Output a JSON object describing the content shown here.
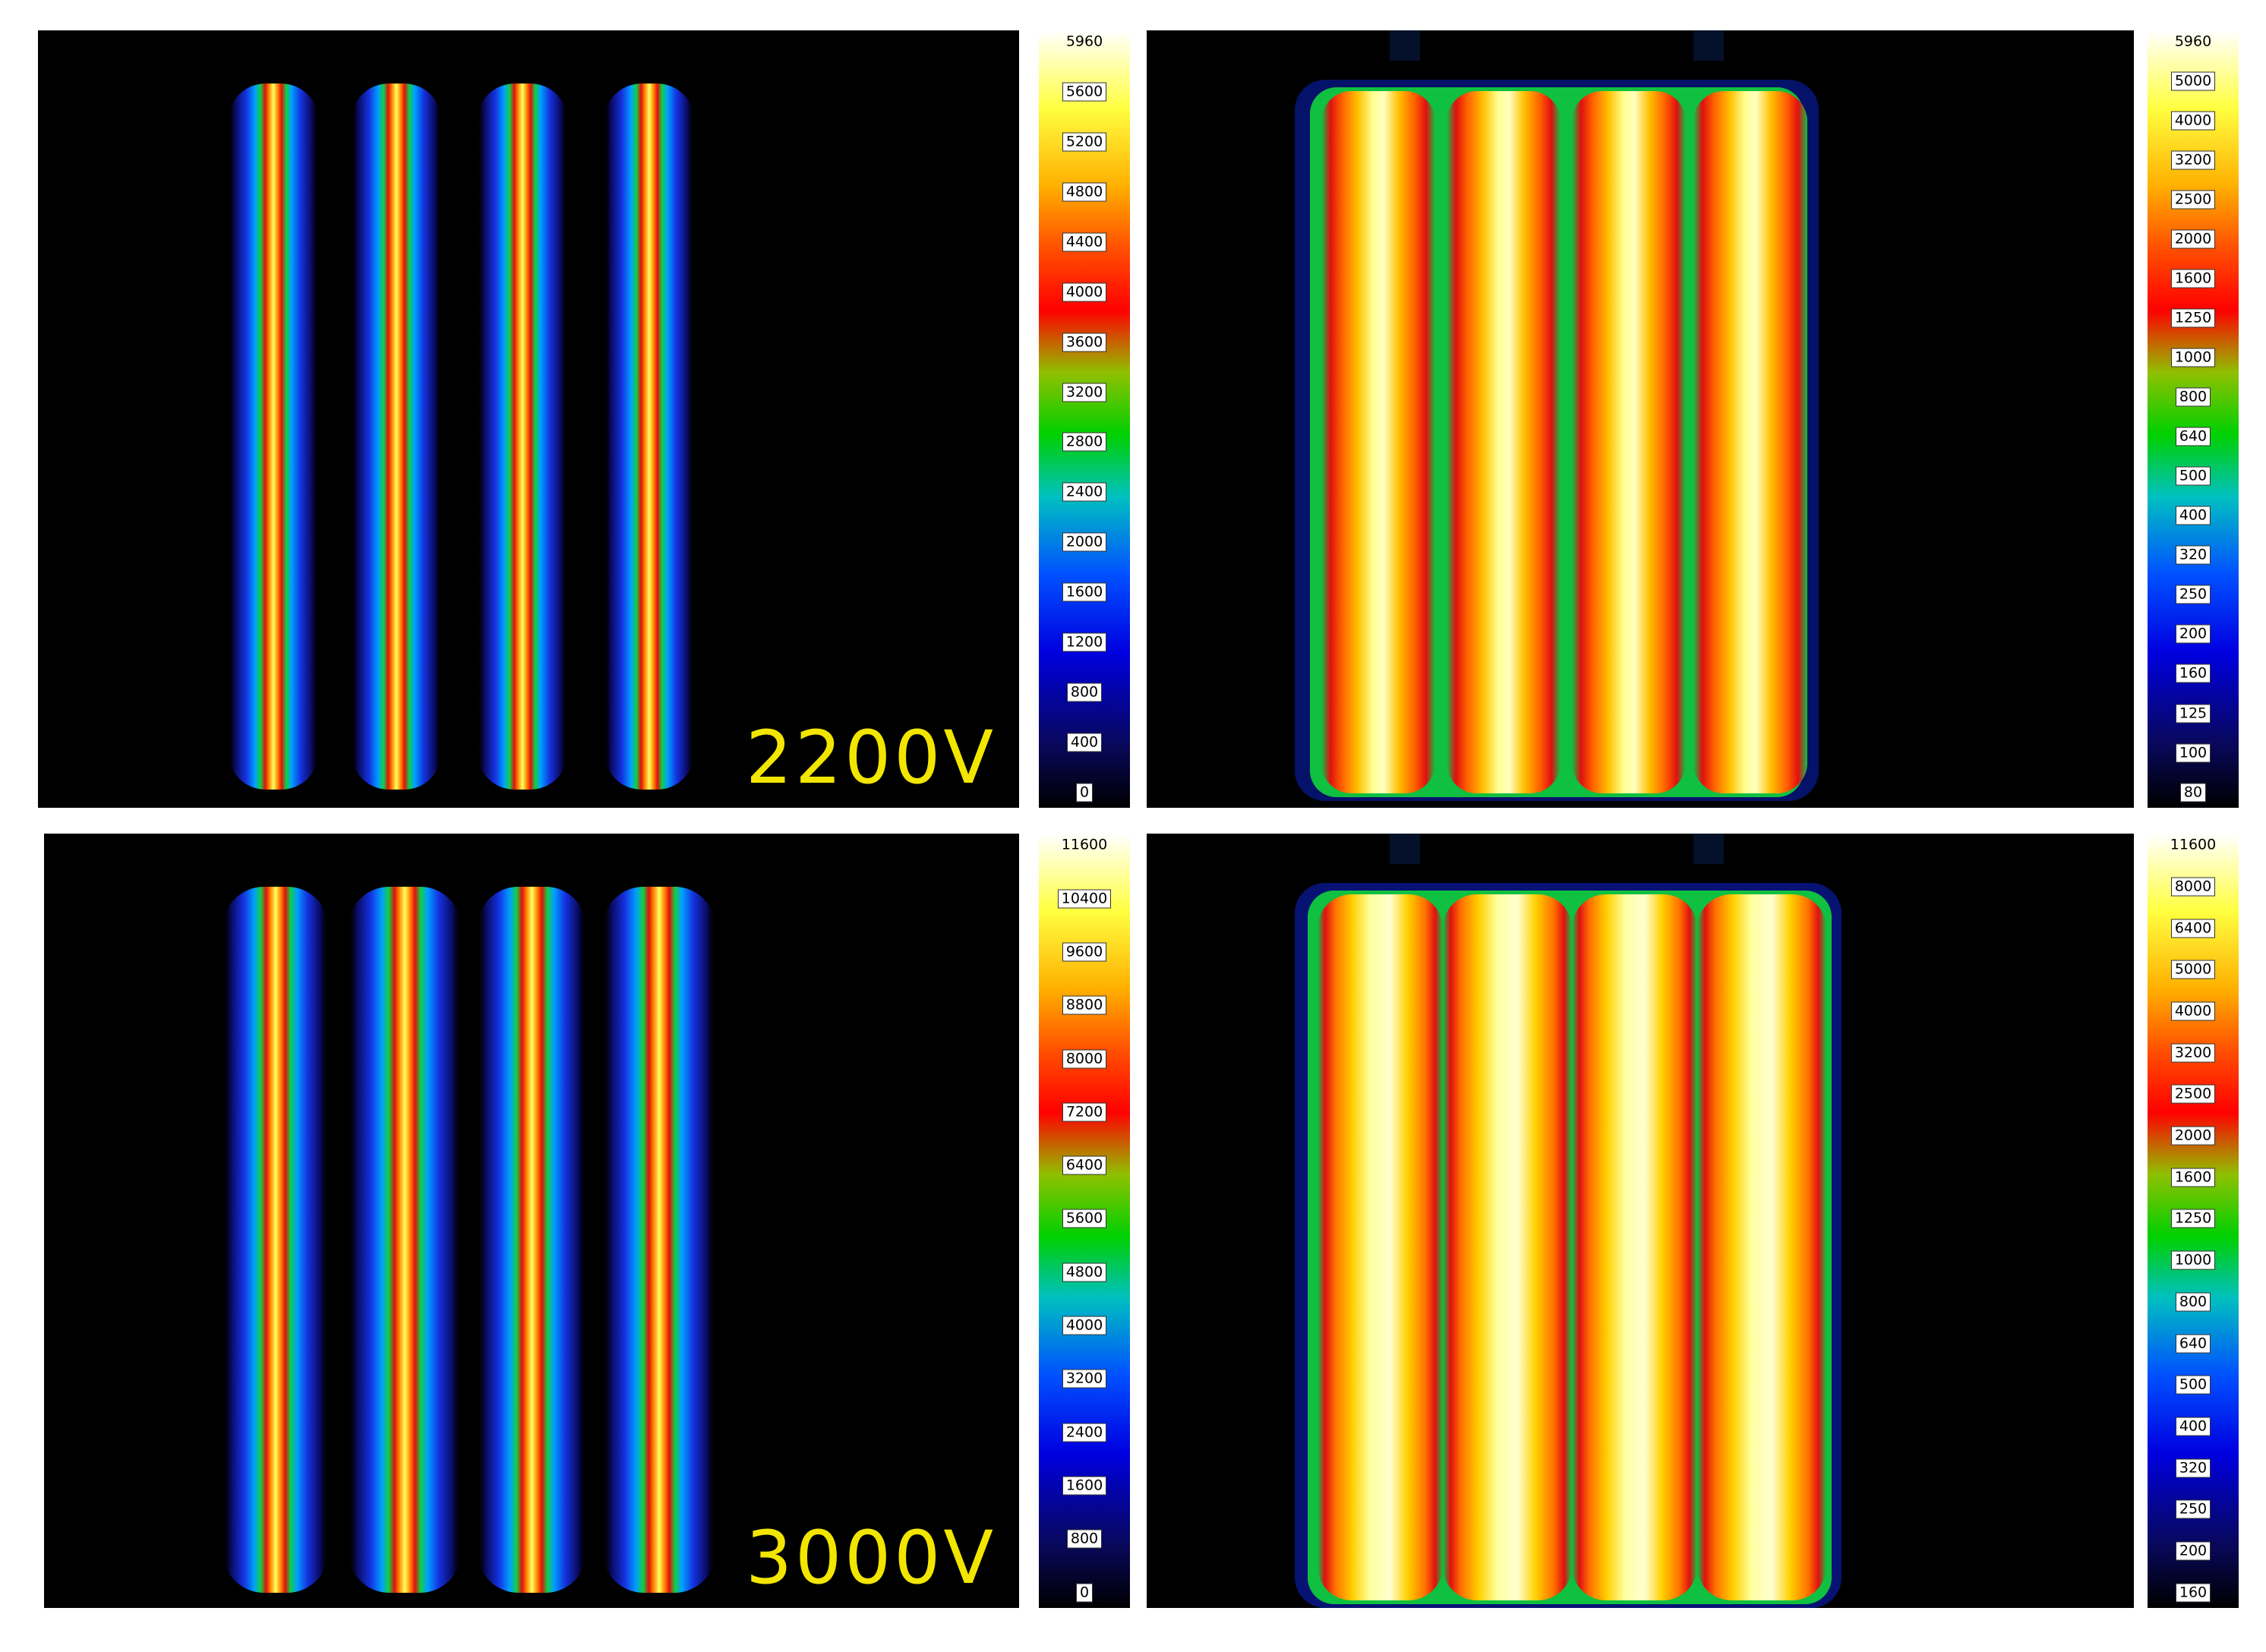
{
  "panels": [
    {
      "id": "top-left",
      "label": "2200V"
    },
    {
      "id": "bottom-left",
      "label": "3000V"
    },
    {
      "id": "top-right",
      "label": ""
    },
    {
      "id": "bottom-right",
      "label": ""
    }
  ],
  "colorbars": [
    {
      "id": "cbar-top-left",
      "ticks": [
        "5960",
        "5600",
        "5200",
        "4800",
        "4400",
        "4000",
        "3600",
        "3200",
        "2800",
        "2400",
        "2000",
        "1600",
        "1200",
        "800",
        "400",
        "0"
      ]
    },
    {
      "id": "cbar-top-right",
      "ticks": [
        "5960",
        "5000",
        "4000",
        "3200",
        "2500",
        "2000",
        "1600",
        "1250",
        "1000",
        "800",
        "640",
        "500",
        "400",
        "320",
        "250",
        "200",
        "160",
        "125",
        "100",
        "80"
      ]
    },
    {
      "id": "cbar-bottom-left",
      "ticks": [
        "11600",
        "10400",
        "9600",
        "8800",
        "8000",
        "7200",
        "6400",
        "5600",
        "4800",
        "4000",
        "3200",
        "2400",
        "1600",
        "800",
        "0"
      ]
    },
    {
      "id": "cbar-bottom-right",
      "ticks": [
        "11600",
        "8000",
        "6400",
        "5000",
        "4000",
        "3200",
        "2500",
        "2000",
        "1600",
        "1250",
        "1000",
        "800",
        "640",
        "500",
        "400",
        "320",
        "250",
        "200",
        "160"
      ]
    }
  ],
  "colors": {
    "background": "#000000",
    "label": "#f2e600"
  }
}
